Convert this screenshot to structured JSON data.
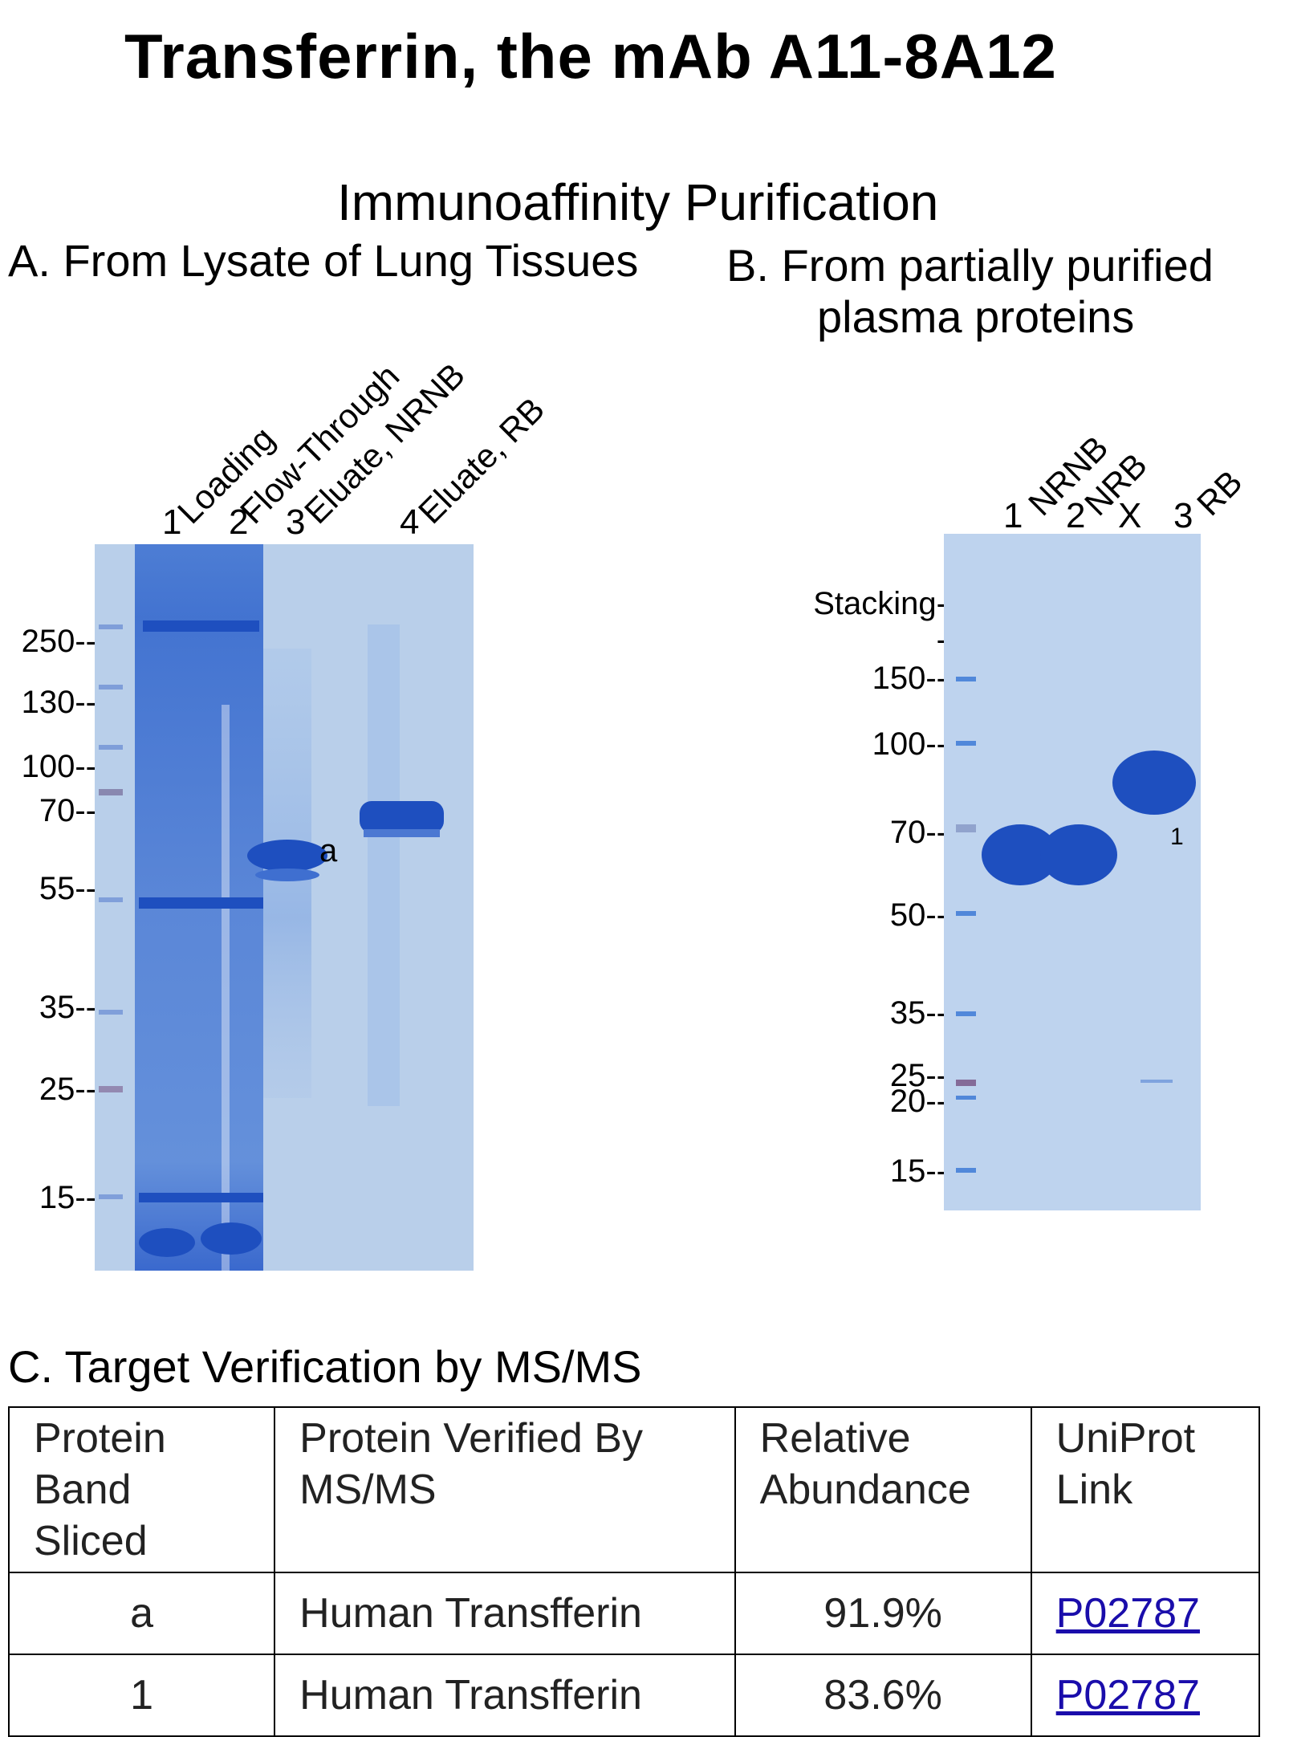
{
  "title": "Transferrin, the mAb A11-8A12",
  "subtitle": "Immunoaffinity Purification",
  "panel_a": {
    "title": "A. From Lysate of Lung Tissues",
    "lanes": [
      {
        "label": "Loading",
        "number": "1"
      },
      {
        "label": "Flow-Through",
        "number": "2"
      },
      {
        "label": "Eluate, NRNB",
        "number": "3"
      },
      {
        "label": "Eluate, RB",
        "number": "4"
      }
    ],
    "markers": [
      "250--",
      "130--",
      "100--",
      "70--",
      "55--",
      "35--",
      "25--",
      "15--"
    ],
    "band_label": "a"
  },
  "panel_b": {
    "title_line1": "B. From partially purified",
    "title_line2": "plasma proteins",
    "lanes": [
      {
        "label": "NRNB",
        "number": "1"
      },
      {
        "label": "NRB",
        "number": "2"
      },
      {
        "label": "",
        "number": "X"
      },
      {
        "label": "RB",
        "number": "3"
      }
    ],
    "markers": [
      "Stacking--",
      "150--",
      "100--",
      "70--",
      "50--",
      "35--",
      "25--",
      "20--",
      "15--"
    ],
    "band_label": "1"
  },
  "panel_c": {
    "title": "C. Target Verification by MS/MS",
    "headers": [
      "Protein Band Sliced",
      "Protein Verified By MS/MS",
      "Relative Abundance",
      "UniProt Link"
    ],
    "rows": [
      {
        "band": "a",
        "protein": "Human Transfferin",
        "abundance": "91.9%",
        "link": "P02787"
      },
      {
        "band": "1",
        "protein": "Human Transfferin",
        "abundance": "83.6%",
        "link": "P02787"
      }
    ]
  }
}
